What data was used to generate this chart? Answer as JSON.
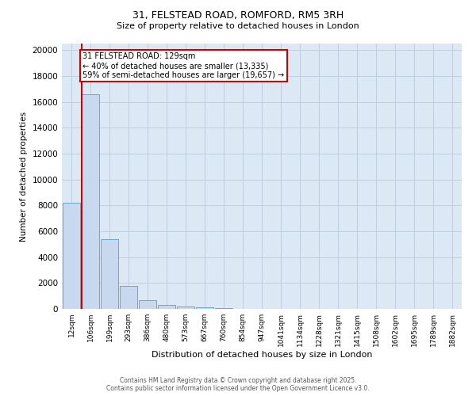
{
  "title_line1": "31, FELSTEAD ROAD, ROMFORD, RM5 3RH",
  "title_line2": "Size of property relative to detached houses in London",
  "xlabel": "Distribution of detached houses by size in London",
  "ylabel": "Number of detached properties",
  "bar_labels": [
    "12sqm",
    "106sqm",
    "199sqm",
    "293sqm",
    "386sqm",
    "480sqm",
    "573sqm",
    "667sqm",
    "760sqm",
    "854sqm",
    "947sqm",
    "1041sqm",
    "1134sqm",
    "1228sqm",
    "1321sqm",
    "1415sqm",
    "1508sqm",
    "1602sqm",
    "1695sqm",
    "1789sqm",
    "1882sqm"
  ],
  "bar_values": [
    8200,
    16600,
    5400,
    1800,
    700,
    300,
    200,
    100,
    50,
    10,
    5,
    2,
    1,
    1,
    0,
    0,
    0,
    0,
    0,
    0,
    0
  ],
  "bar_color": "#c8d8ee",
  "bar_edge_color": "#5a9fd4",
  "grid_color": "#c0cfe0",
  "background_color": "#dce8f4",
  "vline_color": "#cc0000",
  "annotation_text": "31 FELSTEAD ROAD: 129sqm\n← 40% of detached houses are smaller (13,335)\n59% of semi-detached houses are larger (19,657) →",
  "annotation_box_color": "#cc0000",
  "ylim": [
    0,
    20500
  ],
  "yticks": [
    0,
    2000,
    4000,
    6000,
    8000,
    10000,
    12000,
    14000,
    16000,
    18000,
    20000
  ],
  "footer_line1": "Contains HM Land Registry data © Crown copyright and database right 2025.",
  "footer_line2": "Contains public sector information licensed under the Open Government Licence v3.0."
}
